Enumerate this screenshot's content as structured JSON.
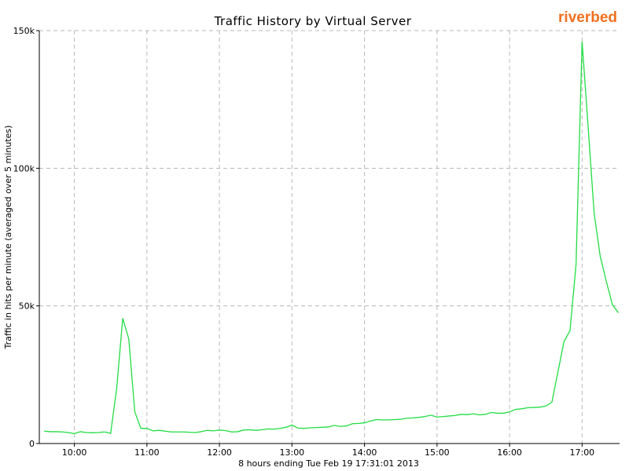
{
  "logo": "riverbed",
  "chart_data": {
    "type": "line",
    "title": "Traffic History by Virtual Server",
    "xlabel": "8 hours ending Tue Feb 19 17:31:01 2013",
    "ylabel": "Traffic in hits per minute (averaged over 5 minutes)",
    "color": "#22dd44",
    "grid": true,
    "xlim": [
      571,
      1051
    ],
    "ylim": [
      0,
      150000
    ],
    "xticks": [
      {
        "value": 600,
        "label": "10:00"
      },
      {
        "value": 660,
        "label": "11:00"
      },
      {
        "value": 720,
        "label": "12:00"
      },
      {
        "value": 780,
        "label": "13:00"
      },
      {
        "value": 840,
        "label": "14:00"
      },
      {
        "value": 900,
        "label": "15:00"
      },
      {
        "value": 960,
        "label": "16:00"
      },
      {
        "value": 1020,
        "label": "17:00"
      }
    ],
    "yticks": [
      0,
      {
        "value": 50000,
        "label": "50k"
      },
      {
        "value": 100000,
        "label": "100k"
      },
      {
        "value": 150000,
        "label": "150k"
      }
    ],
    "x": [
      575,
      580,
      585,
      590,
      595,
      600,
      605,
      610,
      615,
      620,
      625,
      630,
      635,
      640,
      645,
      650,
      655,
      660,
      665,
      670,
      675,
      680,
      685,
      690,
      695,
      700,
      705,
      710,
      715,
      720,
      725,
      730,
      735,
      740,
      745,
      750,
      755,
      760,
      765,
      770,
      775,
      780,
      785,
      790,
      795,
      800,
      805,
      810,
      815,
      820,
      825,
      830,
      835,
      840,
      845,
      850,
      855,
      860,
      865,
      870,
      875,
      880,
      885,
      890,
      895,
      900,
      905,
      910,
      915,
      920,
      925,
      930,
      935,
      940,
      945,
      950,
      955,
      960,
      965,
      970,
      975,
      980,
      985,
      990,
      995,
      1000,
      1005,
      1010,
      1015,
      1020,
      1025,
      1030,
      1035,
      1040,
      1045,
      1050
    ],
    "values": [
      4500,
      4300,
      4300,
      4200,
      4000,
      3600,
      4300,
      4000,
      3900,
      4000,
      4200,
      3700,
      20000,
      45500,
      38000,
      11500,
      5500,
      5500,
      4600,
      4800,
      4500,
      4200,
      4200,
      4200,
      4100,
      4000,
      4300,
      4800,
      4600,
      4900,
      4700,
      4200,
      4300,
      4900,
      5000,
      4800,
      5000,
      5300,
      5200,
      5500,
      5900,
      6700,
      5600,
      5500,
      5700,
      5800,
      5900,
      6000,
      6600,
      6200,
      6400,
      7200,
      7300,
      7500,
      8200,
      8700,
      8600,
      8600,
      8700,
      8800,
      9200,
      9300,
      9500,
      9800,
      10300,
      9600,
      9800,
      10000,
      10200,
      10600,
      10500,
      10800,
      10400,
      10600,
      11300,
      11000,
      11000,
      11500,
      12400,
      12600,
      13000,
      13100,
      13200,
      13600,
      15000,
      26000,
      37000,
      41000,
      65000,
      146000,
      115000,
      83500,
      68000,
      59000,
      50500,
      47500
    ]
  }
}
